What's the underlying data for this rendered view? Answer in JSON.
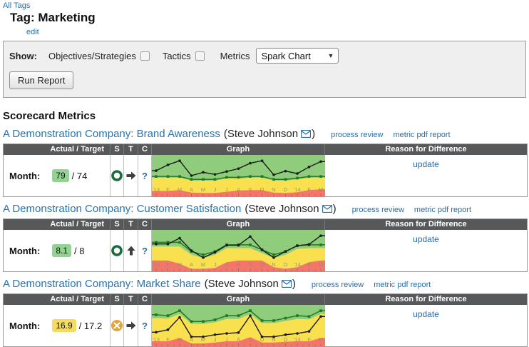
{
  "page": {
    "all_tags_link": "All Tags",
    "title": "Tag: Marketing",
    "edit_link": "edit",
    "section_heading": "Scorecard Metrics"
  },
  "show_bar": {
    "show_label": "Show:",
    "objectives_label": "Objectives/Strategies",
    "tactics_label": "Tactics",
    "metrics_label": "Metrics",
    "metrics_value": "Spark Chart",
    "dropdown_arrow": "▼",
    "run_report_label": "Run Report"
  },
  "table": {
    "headers": {
      "actual_target": "Actual / Target",
      "s": "S",
      "t": "T",
      "c": "C",
      "graph": "Graph",
      "reason": "Reason for Difference"
    },
    "row_label": "Month:",
    "confidence_symbol": "?",
    "update_label": "update"
  },
  "colors": {
    "status_ok_ring": "#1a6c3c",
    "status_warning_circle": "#e2a53e",
    "header_bg": "#57585a",
    "link_blue": "#2a6ca5",
    "badge_green": "#92d392",
    "badge_yellow": "#f6dc5e"
  },
  "metrics": [
    {
      "title": "A Demonstration Company: Brand Awareness",
      "owner": "(Steve Johnson",
      "owner_close": ")",
      "link_process_review": "process review",
      "link_metric_pdf_report": "metric pdf report",
      "actual": "79",
      "target": "/ 74",
      "actual_badge_color": "#92d392",
      "status": "ok",
      "trend": "right",
      "reason_link": "update",
      "chart": {
        "type": "sparkline-with-bands",
        "x_labels": [
          "'13",
          "F",
          "M",
          "A",
          "M",
          "J",
          "J",
          "A",
          "S",
          "O",
          "N",
          "D",
          "'14",
          "F",
          "M"
        ],
        "actual": [
          62,
          76,
          86,
          50,
          58,
          53,
          60,
          67,
          80,
          86,
          52,
          61,
          55,
          71,
          84
        ],
        "target": [
          48,
          48,
          48,
          41,
          41,
          41,
          46,
          46,
          48,
          48,
          41,
          41,
          44,
          48,
          48
        ],
        "green_floor": [
          45,
          45,
          45,
          38,
          38,
          38,
          43,
          43,
          45,
          45,
          38,
          38,
          41,
          45,
          45
        ],
        "red_ceiling": [
          13,
          13,
          15,
          9,
          8,
          8,
          11,
          14,
          15,
          15,
          9,
          8,
          10,
          15,
          17
        ],
        "colors": {
          "green": "#8fcc7c",
          "yellow": "#f8e04e",
          "red": "#f4756a",
          "target_line": "#1e7a21",
          "actual_line": "#1a1a1a"
        }
      }
    },
    {
      "title": "A Demonstration Company: Customer Satisfaction",
      "owner": "(Steve Johnson",
      "owner_close": ")",
      "link_process_review": "process review",
      "link_metric_pdf_report": "metric pdf report",
      "actual": "8.1",
      "target": "/ 8",
      "actual_badge_color": "#92d392",
      "status": "ok",
      "trend": "up",
      "reason_link": "update",
      "chart": {
        "type": "sparkline-with-bands",
        "x_labels": [
          "'13",
          "F",
          "M",
          "A",
          "M",
          "J",
          "J",
          "A",
          "S",
          "O",
          "N",
          "D",
          "'14",
          "F",
          "M"
        ],
        "actual": [
          66,
          66,
          80,
          50,
          33,
          46,
          63,
          63,
          84,
          52,
          33,
          48,
          62,
          65,
          86
        ],
        "target": [
          70,
          70,
          70,
          48,
          40,
          48,
          64,
          64,
          64,
          52,
          40,
          48,
          62,
          64,
          64
        ],
        "green_floor": [
          60,
          60,
          60,
          40,
          32,
          40,
          56,
          56,
          56,
          44,
          32,
          40,
          54,
          56,
          56
        ],
        "red_ceiling": [
          26,
          26,
          18,
          6,
          6,
          8,
          22,
          26,
          26,
          26,
          10,
          6,
          10,
          22,
          26
        ],
        "colors": {
          "green": "#8fcc7c",
          "yellow": "#f8e04e",
          "red": "#f4756a",
          "target_line": "#1e7a21",
          "actual_line": "#1a1a1a"
        }
      }
    },
    {
      "title": "A Demonstration Company: Market Share",
      "owner": "(Steve Johnson",
      "owner_close": ")",
      "link_process_review": "process review",
      "link_metric_pdf_report": "metric pdf report",
      "actual": "16.9",
      "target": "/ 17.2",
      "actual_badge_color": "#f6dc5e",
      "status": "warning",
      "trend": "right",
      "reason_link": "update",
      "chart": {
        "type": "sparkline-with-bands",
        "x_labels": [
          "'13",
          "F",
          "M",
          "A",
          "M",
          "J",
          "J",
          "A",
          "S",
          "O",
          "N",
          "D",
          "'14",
          "F",
          "M"
        ],
        "actual": [
          34,
          40,
          70,
          23,
          23,
          28,
          31,
          33,
          74,
          23,
          23,
          28,
          31,
          36,
          72
        ],
        "target": [
          76,
          74,
          86,
          60,
          60,
          64,
          74,
          74,
          86,
          62,
          62,
          68,
          74,
          72,
          86
        ],
        "green_floor": [
          68,
          67,
          78,
          54,
          54,
          58,
          66,
          66,
          78,
          56,
          56,
          61,
          66,
          65,
          78
        ],
        "red_ceiling": [
          12,
          12,
          20,
          7,
          7,
          9,
          12,
          12,
          22,
          9,
          9,
          11,
          12,
          12,
          20
        ],
        "colors": {
          "green": "#8fcc7c",
          "yellow": "#f8e04e",
          "red": "#f4756a",
          "target_line": "#1e7a21",
          "actual_line": "#1a1a1a"
        }
      }
    }
  ]
}
